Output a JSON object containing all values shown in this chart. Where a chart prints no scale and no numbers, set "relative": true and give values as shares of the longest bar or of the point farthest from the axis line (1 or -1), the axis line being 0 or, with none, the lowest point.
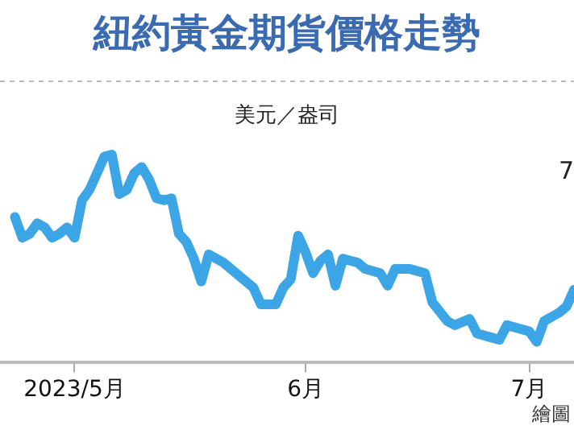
{
  "chart_data": {
    "type": "line",
    "title": "紐約黃金期貨價格走勢",
    "ylabel": "美元／盎司",
    "relative": true,
    "color": "#3ba5e6",
    "x": [
      "2023-04-23",
      "2023-04-24",
      "2023-04-25",
      "2023-04-26",
      "2023-04-27",
      "2023-04-28",
      "2023-04-29",
      "2023-04-30",
      "2023-05-01",
      "2023-05-02",
      "2023-05-03",
      "2023-05-04",
      "2023-05-05",
      "2023-05-06",
      "2023-05-07",
      "2023-05-08",
      "2023-05-09",
      "2023-05-10",
      "2023-05-11",
      "2023-05-12",
      "2023-05-13",
      "2023-05-14",
      "2023-05-15",
      "2023-05-16",
      "2023-05-17",
      "2023-05-18",
      "2023-05-19",
      "2023-05-21",
      "2023-05-22",
      "2023-05-24",
      "2023-05-25",
      "2023-05-26",
      "2023-05-28",
      "2023-05-29",
      "2023-05-30",
      "2023-05-31",
      "2023-06-01",
      "2023-06-02",
      "2023-06-03",
      "2023-06-04",
      "2023-06-05",
      "2023-06-06",
      "2023-06-08",
      "2023-06-09",
      "2023-06-11",
      "2023-06-12",
      "2023-06-13",
      "2023-06-15",
      "2023-06-17",
      "2023-06-18",
      "2023-06-20",
      "2023-06-21",
      "2023-06-23",
      "2023-06-24",
      "2023-06-26",
      "2023-06-27",
      "2023-06-28",
      "2023-06-30",
      "2023-07-01",
      "2023-07-02",
      "2023-07-03",
      "2023-07-05",
      "2023-07-06",
      "2023-07-07"
    ],
    "values": [
      0.7,
      0.6,
      0.62,
      0.67,
      0.65,
      0.6,
      0.62,
      0.65,
      0.6,
      0.78,
      0.83,
      0.91,
      0.99,
      1.0,
      0.81,
      0.83,
      0.91,
      0.94,
      0.88,
      0.79,
      0.78,
      0.79,
      0.62,
      0.58,
      0.5,
      0.39,
      0.52,
      0.48,
      0.45,
      0.39,
      0.36,
      0.28,
      0.28,
      0.36,
      0.4,
      0.61,
      0.53,
      0.43,
      0.49,
      0.52,
      0.37,
      0.5,
      0.48,
      0.45,
      0.43,
      0.37,
      0.45,
      0.45,
      0.43,
      0.29,
      0.2,
      0.18,
      0.21,
      0.14,
      0.12,
      0.11,
      0.18,
      0.16,
      0.15,
      0.1,
      0.2,
      0.24,
      0.27,
      0.35
    ],
    "xlim": [
      "2023-04-21",
      "2023-07-07"
    ],
    "xticks": [
      {
        "value": "2023-05-01",
        "label": "2023/5月"
      },
      {
        "value": "2023-06-01",
        "label": "6月"
      },
      {
        "value": "2023-07-01",
        "label": "7月"
      }
    ],
    "annotations": [
      "7",
      "繪圖"
    ]
  }
}
